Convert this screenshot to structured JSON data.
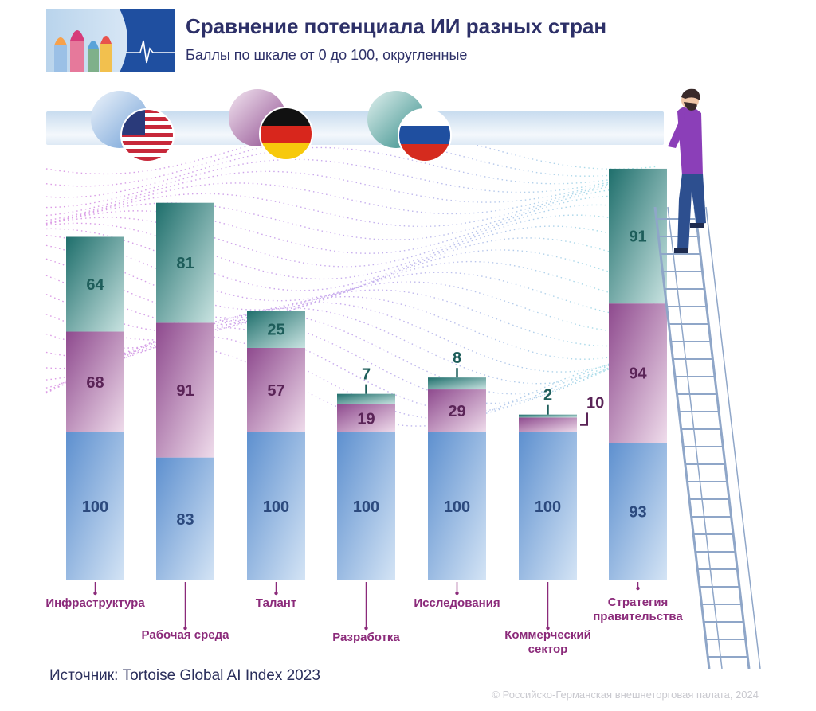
{
  "title": "Сравнение потенциала ИИ разных стран",
  "subtitle": "Баллы по шкале от 0 до 100, округленные",
  "source": "Источник: Tortoise Global AI Index 2023",
  "copyright": "© Российско-Германская внешнеторговая палата, 2024",
  "colors": {
    "usa": "#6f9fd6",
    "germany": "#a66aa6",
    "russia": "#2f8a86",
    "category_label": "#8b2a7a"
  },
  "chart_data": {
    "type": "bar",
    "stacked": true,
    "categories": [
      "Инфраструктура",
      "Рабочая среда",
      "Талант",
      "Разработка",
      "Исследования",
      "Коммерческий сектор",
      "Стратегия правительства"
    ],
    "series": [
      {
        "flag": "usa-flag",
        "values": [
          100,
          83,
          100,
          100,
          100,
          100,
          93
        ]
      },
      {
        "flag": "germany-flag",
        "values": [
          68,
          91,
          57,
          19,
          29,
          10,
          94
        ]
      },
      {
        "flag": "russia-flag",
        "values": [
          64,
          81,
          25,
          7,
          8,
          2,
          91
        ]
      }
    ],
    "ylim": [
      0,
      300
    ]
  }
}
